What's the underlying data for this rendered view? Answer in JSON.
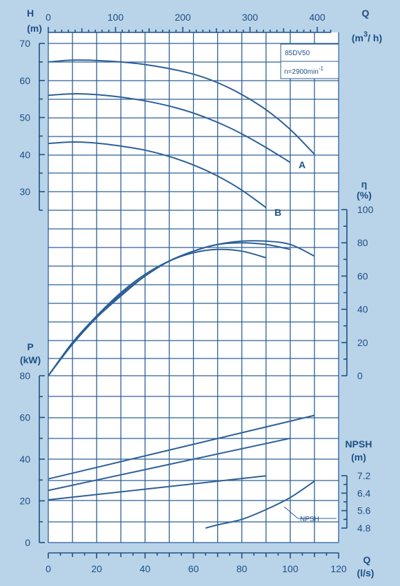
{
  "colors": {
    "background": "#b9d3e8",
    "plot": "#ffffff",
    "line": "#2c5f97",
    "text": "#1d4f86"
  },
  "info_box": {
    "model": "85DV50",
    "speed": "n=2900",
    "speed_unit": "min",
    "speed_exp": "-1"
  },
  "axes": {
    "x_bottom": {
      "label": "Q",
      "unit": "(l/s)",
      "range": [
        0,
        120
      ],
      "ticks": [
        "0",
        "20",
        "40",
        "60",
        "80",
        "100",
        "120"
      ]
    },
    "x_top": {
      "label": "Q",
      "unit_pre": "(m",
      "unit_sup": "3",
      "unit_post": "/ h)",
      "range": [
        0,
        400
      ],
      "ticks": [
        "0",
        "100",
        "200",
        "300",
        "400"
      ]
    },
    "head": {
      "label": "H",
      "unit": "(m)",
      "range": [
        25,
        70
      ],
      "ticks": [
        "70",
        "60",
        "50",
        "40",
        "30"
      ]
    },
    "eff": {
      "label": "η",
      "unit": "(%)",
      "range": [
        0,
        100
      ],
      "ticks": [
        "100",
        "80",
        "60",
        "40",
        "20",
        "0"
      ]
    },
    "power": {
      "label": "P",
      "unit": "(kW)",
      "range": [
        0,
        80
      ],
      "ticks": [
        "80",
        "60",
        "40",
        "20",
        "0"
      ]
    },
    "npsh": {
      "label": "NPSH",
      "unit": "(m)",
      "range": [
        4.8,
        7.2
      ],
      "ticks": [
        "7.2",
        "6.4",
        "5.6",
        "4.8"
      ]
    }
  },
  "chart_data": {
    "type": "line",
    "x_unit": "l/s",
    "head_curves": [
      {
        "name": "",
        "x": [
          0,
          10,
          20,
          30,
          40,
          50,
          60,
          70,
          80,
          90,
          100,
          110
        ],
        "y": [
          65,
          65.5,
          65.4,
          65,
          64.3,
          63.2,
          61.7,
          59.4,
          56.2,
          52.1,
          46.8,
          40.1
        ]
      },
      {
        "name": "A",
        "x": [
          0,
          10,
          20,
          30,
          40,
          50,
          60,
          70,
          80,
          90,
          100
        ],
        "y": [
          56,
          56.4,
          56.2,
          55.5,
          54.5,
          53.1,
          51.2,
          48.7,
          45.6,
          41.9,
          37.9
        ]
      },
      {
        "name": "B",
        "x": [
          0,
          10,
          20,
          30,
          40,
          50,
          60,
          70,
          80,
          90
        ],
        "y": [
          43,
          43.4,
          43.1,
          42.3,
          41.2,
          39.5,
          37.2,
          34.2,
          30.4,
          25.7
        ]
      }
    ],
    "efficiency_curves": [
      {
        "x": [
          0,
          10,
          20,
          30,
          40,
          50,
          60,
          70,
          80,
          90,
          100,
          110
        ],
        "y": [
          0,
          19,
          35,
          48,
          60,
          69,
          75,
          79,
          81,
          81,
          79,
          72
        ]
      },
      {
        "x": [
          0,
          10,
          20,
          30,
          40,
          50,
          60,
          70,
          80,
          90,
          100
        ],
        "y": [
          0,
          19,
          35,
          49,
          60,
          69,
          75,
          79,
          80,
          79,
          76
        ]
      },
      {
        "x": [
          0,
          10,
          20,
          30,
          40,
          50,
          60,
          70,
          80,
          90
        ],
        "y": [
          0,
          20,
          36,
          50,
          61,
          69,
          74,
          76,
          75,
          71
        ]
      }
    ],
    "power_curves": [
      {
        "x": [
          0,
          110
        ],
        "y": [
          30.5,
          61
        ]
      },
      {
        "x": [
          0,
          100
        ],
        "y": [
          25,
          50
        ]
      },
      {
        "x": [
          0,
          90
        ],
        "y": [
          20.5,
          32
        ]
      }
    ],
    "npsh_curve": {
      "name": "NPSH",
      "x": [
        65,
        70,
        80,
        90,
        100,
        110
      ],
      "y": [
        4.8,
        4.95,
        5.2,
        5.65,
        6.2,
        6.95
      ]
    },
    "curve_labels": [
      "A",
      "B"
    ]
  }
}
